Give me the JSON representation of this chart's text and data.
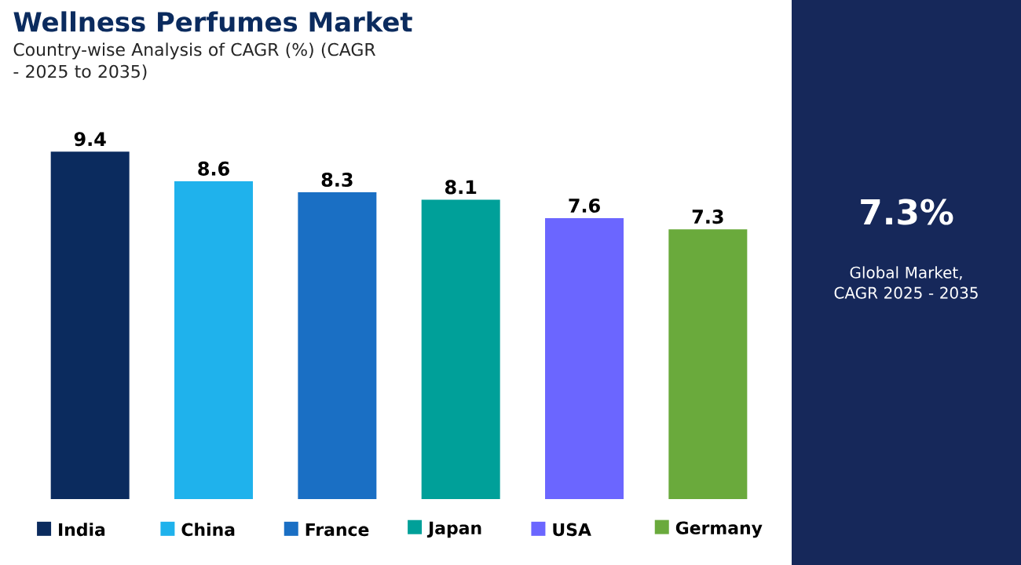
{
  "chart_data": {
    "type": "bar",
    "title": "Wellness Perfumes Market",
    "subtitle": "Country-wise Analysis of CAGR (%) (CAGR - 2025 to 2035)",
    "categories": [
      "India",
      "China",
      "France",
      "Japan",
      "USA",
      "Germany"
    ],
    "values": [
      9.4,
      8.6,
      8.3,
      8.1,
      7.6,
      7.3
    ],
    "colors": [
      "#0b2b5e",
      "#1fb2ec",
      "#1a6fc4",
      "#00a099",
      "#6b66ff",
      "#6aaa3c"
    ],
    "data_labels": true,
    "annotations": [
      "7.3%",
      "Global Market, CAGR 2025 - 2035"
    ]
  }
}
